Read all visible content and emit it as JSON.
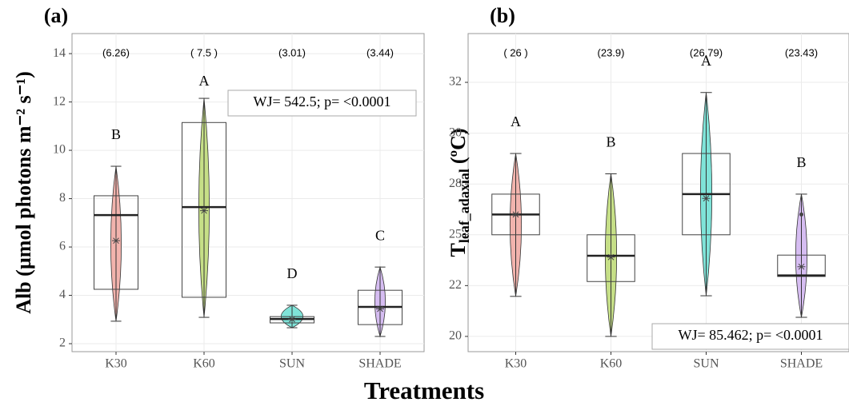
{
  "xlabel": "Treatments",
  "chart_data": [
    {
      "type": "violin-box",
      "panel": "(a)",
      "ylabel": "Alb (µmol photons m⁻² s⁻¹)",
      "annotation": "WJ= 542.5; p= <0.0001",
      "categories": [
        "K30",
        "K60",
        "SUN",
        "SHADE"
      ],
      "colors": [
        "#f2b3ad",
        "#c6df87",
        "#7fe3d8",
        "#d6bdf2"
      ],
      "min": [
        2.93,
        3.09,
        2.66,
        2.3
      ],
      "q1": [
        4.25,
        3.92,
        2.86,
        2.79
      ],
      "median": [
        7.32,
        7.65,
        3.02,
        3.52
      ],
      "q3": [
        8.12,
        11.15,
        3.12,
        4.21
      ],
      "max": [
        9.34,
        12.15,
        3.59,
        5.17
      ],
      "means": [
        6.26,
        7.5,
        3.01,
        3.44
      ],
      "mean_labels": [
        "(6.26)",
        "( 7.5 )",
        "(3.01)",
        "(3.44)"
      ],
      "letters": [
        "B",
        "A",
        "D",
        "C"
      ],
      "outliers": [
        [],
        [],
        [],
        []
      ],
      "ylim": [
        1.67,
        14.83
      ],
      "yticks": [
        2,
        4,
        6,
        8,
        10,
        12,
        14
      ],
      "grid": true
    },
    {
      "type": "violin-box",
      "panel": "(b)",
      "ylabel": {
        "text": "T",
        "subscript": "leaf_adaxial",
        "unit": "(ºC)"
      },
      "annotation": "WJ= 85.462; p= <0.0001",
      "categories": [
        "K30",
        "K60",
        "SUN",
        "SHADE"
      ],
      "colors": [
        "#f2b3ad",
        "#c6df87",
        "#7fe3d8",
        "#d6bdf2"
      ],
      "min": [
        21.97,
        20.0,
        22.0,
        20.94
      ],
      "q1": [
        25.0,
        22.7,
        25.0,
        22.95
      ],
      "median": [
        26.0,
        23.97,
        27.0,
        23.0
      ],
      "q3": [
        27.0,
        25.0,
        29.0,
        24.0
      ],
      "max": [
        29.0,
        28.0,
        32.0,
        27.0
      ],
      "means": [
        26,
        23.9,
        26.79,
        23.43
      ],
      "mean_labels": [
        "( 26 )",
        "(23.9)",
        "(26.79)",
        "(23.43)"
      ],
      "letters": [
        "A",
        "B",
        "A",
        "B"
      ],
      "outliers": [
        [],
        [],
        [],
        [
          26.0
        ]
      ],
      "ylim": [
        19.25,
        34.9
      ],
      "yticks": [
        20,
        {
          "value": 22.5,
          "label": "22"
        },
        25,
        {
          "value": 27.5,
          "label": "28"
        },
        30,
        {
          "value": 32.5,
          "label": "32"
        }
      ],
      "grid": true
    }
  ]
}
